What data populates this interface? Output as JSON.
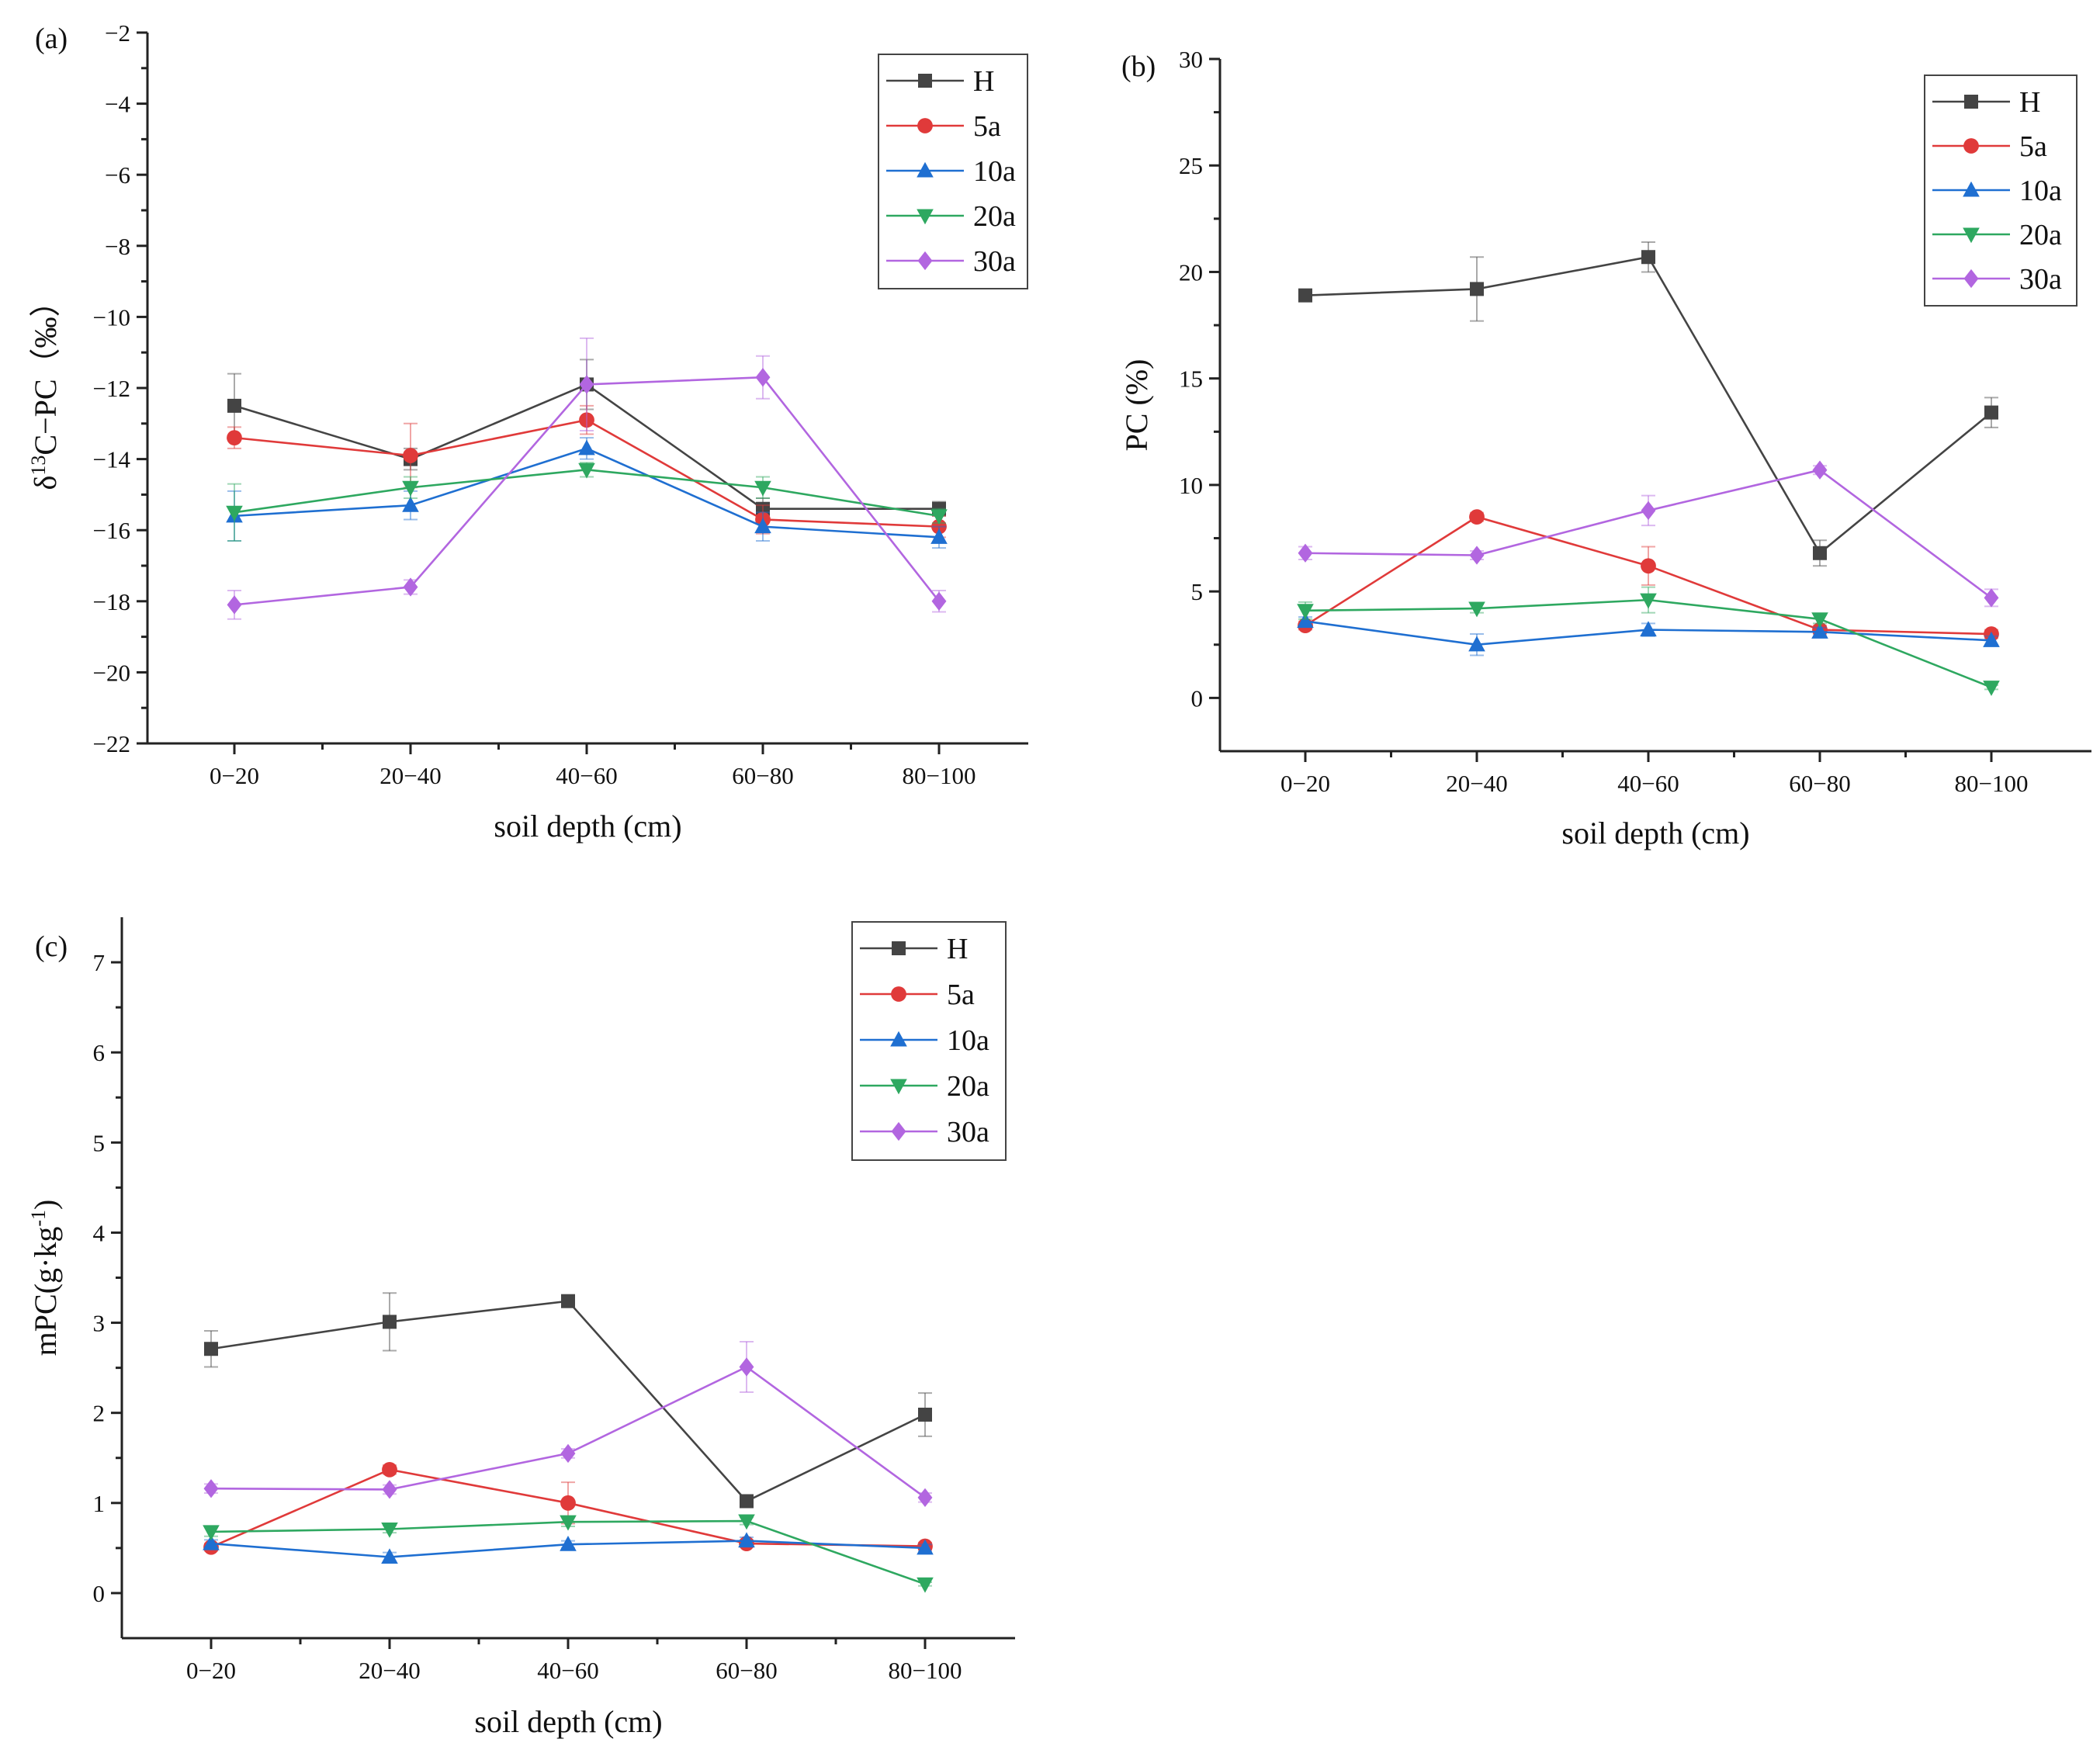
{
  "figure": {
    "colors": {
      "H": "#444444",
      "5a": "#e03a3a",
      "10a": "#1f6fd1",
      "20a": "#2ea860",
      "30a": "#b266e0"
    },
    "markers": {
      "H": "square",
      "5a": "circle",
      "10a": "triangle-up",
      "20a": "triangle-down",
      "30a": "diamond"
    }
  },
  "chart_data": [
    {
      "id": "a",
      "panel_label": "(a)",
      "type": "line",
      "xlabel": "soil depth (cm)",
      "ylabel_parts": {
        "base": "δ",
        "sup": "13",
        "rest": "C−PC（‰）"
      },
      "categories": [
        "0−20",
        "20−40",
        "40−60",
        "60−80",
        "80−100"
      ],
      "ylim": [
        -22,
        -2
      ],
      "yticks": [
        -22,
        -20,
        -18,
        -16,
        -14,
        -12,
        -10,
        -8,
        -6,
        -4,
        -2
      ],
      "ytick_labels": [
        "−22",
        "−20",
        "−18",
        "−16",
        "−14",
        "−12",
        "−10",
        "−8",
        "−6",
        "−4",
        "−2"
      ],
      "legend": [
        "H",
        "5a",
        "10a",
        "20a",
        "30a"
      ],
      "series": [
        {
          "name": "H",
          "values": [
            -12.5,
            -14.0,
            -11.9,
            -15.4,
            -15.4
          ],
          "errors": [
            0.9,
            0.3,
            0.7,
            0.3,
            0.2
          ]
        },
        {
          "name": "5a",
          "values": [
            -13.4,
            -13.9,
            -12.9,
            -15.7,
            -15.9
          ],
          "errors": [
            0.3,
            0.9,
            0.4,
            0.4,
            0.3
          ]
        },
        {
          "name": "10a",
          "values": [
            -15.6,
            -15.3,
            -13.7,
            -15.9,
            -16.2
          ],
          "errors": [
            0.7,
            0.4,
            0.3,
            0.4,
            0.3
          ]
        },
        {
          "name": "20a",
          "values": [
            -15.5,
            -14.8,
            -14.3,
            -14.8,
            -15.6
          ],
          "errors": [
            0.8,
            0.3,
            0.2,
            0.3,
            0.2
          ]
        },
        {
          "name": "30a",
          "values": [
            -18.1,
            -17.6,
            -11.9,
            -11.7,
            -18.0
          ],
          "errors": [
            0.4,
            0.2,
            1.3,
            0.6,
            0.3
          ]
        }
      ]
    },
    {
      "id": "b",
      "panel_label": "(b)",
      "type": "line",
      "xlabel": "soil depth (cm)",
      "ylabel": "PC (%)",
      "categories": [
        "0−20",
        "20−40",
        "40−60",
        "60−80",
        "80−100"
      ],
      "ylim": [
        -2.5,
        30
      ],
      "yticks": [
        0,
        5,
        10,
        15,
        20,
        25,
        30
      ],
      "ytick_labels": [
        "0",
        "5",
        "10",
        "15",
        "20",
        "25",
        "30"
      ],
      "legend": [
        "H",
        "5a",
        "10a",
        "20a",
        "30a"
      ],
      "series": [
        {
          "name": "H",
          "values": [
            18.9,
            19.2,
            20.7,
            6.8,
            13.4
          ],
          "errors": [
            0.2,
            1.5,
            0.7,
            0.6,
            0.7
          ]
        },
        {
          "name": "5a",
          "values": [
            3.4,
            8.5,
            6.2,
            3.2,
            3.0
          ],
          "errors": [
            0.2,
            0.2,
            0.9,
            0.2,
            0.2
          ]
        },
        {
          "name": "10a",
          "values": [
            3.6,
            2.5,
            3.2,
            3.1,
            2.7
          ],
          "errors": [
            0.2,
            0.5,
            0.3,
            0.2,
            0.2
          ]
        },
        {
          "name": "20a",
          "values": [
            4.1,
            4.2,
            4.6,
            3.7,
            0.5
          ],
          "errors": [
            0.4,
            0.2,
            0.6,
            0.2,
            0.1
          ]
        },
        {
          "name": "30a",
          "values": [
            6.8,
            6.7,
            8.8,
            10.7,
            4.7
          ],
          "errors": [
            0.3,
            0.2,
            0.7,
            0.2,
            0.4
          ]
        }
      ]
    },
    {
      "id": "c",
      "panel_label": "(c)",
      "type": "line",
      "xlabel": "soil depth (cm)",
      "ylabel_parts": {
        "base": "mPC(g",
        "mid": "·",
        "rest": "kg",
        "sup": "-1",
        "end": ")"
      },
      "categories": [
        "0−20",
        "20−40",
        "40−60",
        "60−80",
        "80−100"
      ],
      "ylim": [
        -0.5,
        7.5
      ],
      "yticks": [
        0,
        1,
        2,
        3,
        4,
        5,
        6,
        7
      ],
      "ytick_labels": [
        "0",
        "1",
        "2",
        "3",
        "4",
        "5",
        "6",
        "7"
      ],
      "legend": [
        "H",
        "5a",
        "10a",
        "20a",
        "30a"
      ],
      "series": [
        {
          "name": "H",
          "values": [
            2.71,
            3.01,
            3.24,
            1.02,
            1.98
          ],
          "errors": [
            0.2,
            0.32,
            0.05,
            0.05,
            0.24
          ]
        },
        {
          "name": "5a",
          "values": [
            0.51,
            1.37,
            1.0,
            0.55,
            0.52
          ],
          "errors": [
            0.04,
            0.05,
            0.23,
            0.04,
            0.04
          ]
        },
        {
          "name": "10a",
          "values": [
            0.55,
            0.4,
            0.54,
            0.58,
            0.5
          ],
          "errors": [
            0.04,
            0.05,
            0.04,
            0.04,
            0.04
          ]
        },
        {
          "name": "20a",
          "values": [
            0.68,
            0.71,
            0.79,
            0.8,
            0.1
          ],
          "errors": [
            0.05,
            0.04,
            0.05,
            0.04,
            0.02
          ]
        },
        {
          "name": "30a",
          "values": [
            1.16,
            1.15,
            1.55,
            2.51,
            1.06
          ],
          "errors": [
            0.05,
            0.05,
            0.05,
            0.28,
            0.05
          ]
        }
      ]
    }
  ]
}
